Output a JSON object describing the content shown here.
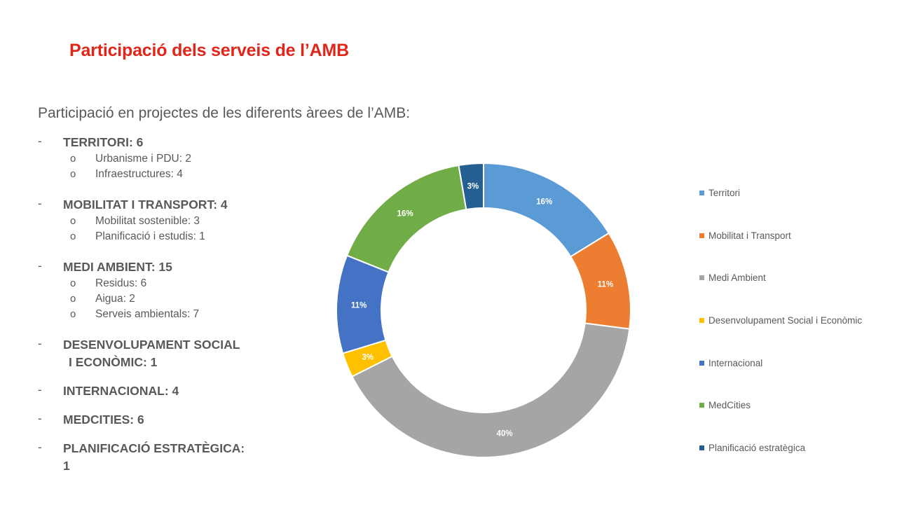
{
  "title": "Participació dels serveis de l’AMB",
  "subtitle": "Participació en projectes de les diferents àrees de l’AMB:",
  "dash": "-",
  "bullet": "o",
  "areas": [
    {
      "label": "TERRITORI: 6",
      "subs": [
        "Urbanisme i PDU: 2",
        "Infraestructures: 4"
      ]
    },
    {
      "label": "MOBILITAT I TRANSPORT: 4",
      "subs": [
        "Mobilitat sostenible: 3",
        "Planificació i estudis: 1"
      ]
    },
    {
      "label": "MEDI AMBIENT: 15",
      "subs": [
        "Residus: 6",
        "Aigua: 2",
        "Serveis ambientals: 7"
      ]
    },
    {
      "label": "DESENVOLUPAMENT SOCIAL",
      "label2": "I ECONÒMIC: 1",
      "subs": []
    },
    {
      "label": "INTERNACIONAL: 4",
      "subs": []
    },
    {
      "label": "MEDCITIES: 6",
      "subs": []
    },
    {
      "label": "PLANIFICACIÓ ESTRATÈGICA: 1",
      "subs": []
    }
  ],
  "chart_data": {
    "type": "pie",
    "subtype": "doughnut",
    "categories": [
      "Territori",
      "Mobilitat i Transport",
      "Medi Ambient",
      "Desenvolupament Social i Econòmic",
      "Internacional",
      "MedCities",
      "Planificació estratègica"
    ],
    "values": [
      6,
      4,
      15,
      1,
      4,
      6,
      1
    ],
    "labels": [
      "16%",
      "11%",
      "40%",
      "3%",
      "11%",
      "16%",
      "3%"
    ],
    "colors": [
      "#5b9bd5",
      "#ed7d31",
      "#a5a5a5",
      "#ffc000",
      "#4472c4",
      "#70ad47",
      "#255e91"
    ],
    "legend_position": "right"
  }
}
